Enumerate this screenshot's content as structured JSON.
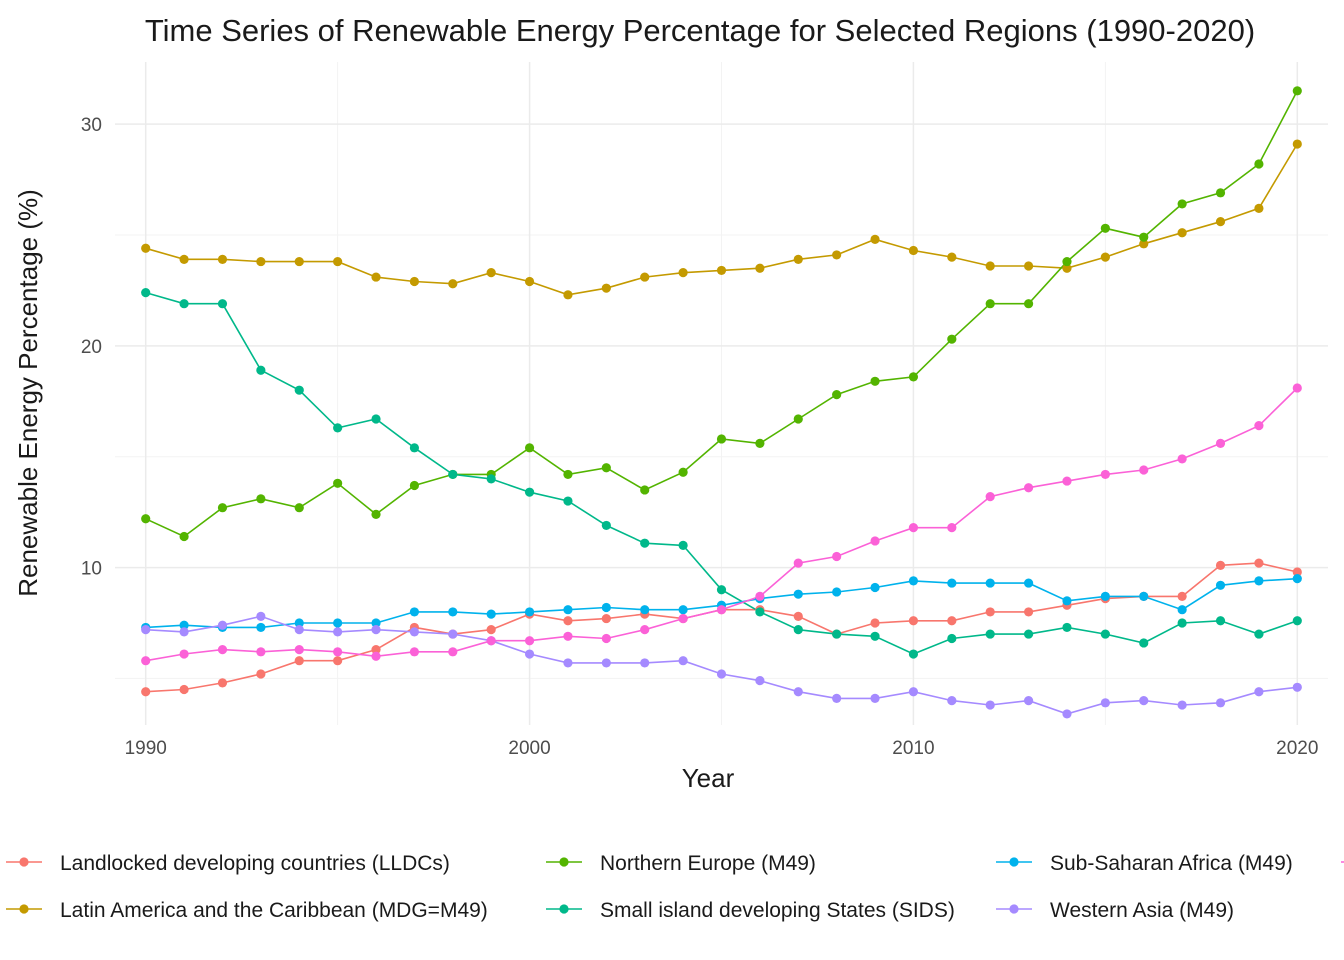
{
  "chart_data": {
    "type": "line",
    "title": "Time Series of Renewable Energy Percentage for Selected Regions (1990-2020)",
    "xlabel": "Year",
    "ylabel": "Renewable Energy Percentage (%)",
    "xlim": [
      1989.2,
      2020.8
    ],
    "ylim": [
      2.9,
      32.8
    ],
    "x_ticks": [
      1990,
      2000,
      2010,
      2020
    ],
    "y_ticks": [
      10,
      20,
      30
    ],
    "y_minor": [
      5,
      15,
      25
    ],
    "x_minor": [
      1995,
      2005,
      2015
    ],
    "grid": true,
    "legend_position": "bottom",
    "x": [
      1990,
      1991,
      1992,
      1993,
      1994,
      1995,
      1996,
      1997,
      1998,
      1999,
      2000,
      2001,
      2002,
      2003,
      2004,
      2005,
      2006,
      2007,
      2008,
      2009,
      2010,
      2011,
      2012,
      2013,
      2014,
      2015,
      2016,
      2017,
      2018,
      2019,
      2020
    ],
    "series": [
      {
        "name": "Landlocked developing countries (LLDCs)",
        "color": "#F8766D",
        "values": [
          4.4,
          4.5,
          4.8,
          5.2,
          5.8,
          5.8,
          6.3,
          7.3,
          7.0,
          7.2,
          7.9,
          7.6,
          7.7,
          7.9,
          7.7,
          8.1,
          8.1,
          7.8,
          7.0,
          7.5,
          7.6,
          7.6,
          8.0,
          8.0,
          8.3,
          8.6,
          8.7,
          8.7,
          10.1,
          10.2,
          9.8
        ]
      },
      {
        "name": "Latin America and the Caribbean (MDG=M49)",
        "color": "#C49A00",
        "values": [
          24.4,
          23.9,
          23.9,
          23.8,
          23.8,
          23.8,
          23.1,
          22.9,
          22.8,
          23.3,
          22.9,
          22.3,
          22.6,
          23.1,
          23.3,
          23.4,
          23.5,
          23.9,
          24.1,
          24.8,
          24.3,
          24.0,
          23.6,
          23.6,
          23.5,
          24.0,
          24.6,
          25.1,
          25.6,
          26.2,
          29.1
        ]
      },
      {
        "name": "Northern Europe (M49)",
        "color": "#53B400",
        "values": [
          12.2,
          11.4,
          12.7,
          13.1,
          12.7,
          13.8,
          12.4,
          13.7,
          14.2,
          14.2,
          15.4,
          14.2,
          14.5,
          13.5,
          14.3,
          15.8,
          15.6,
          16.7,
          17.8,
          18.4,
          18.6,
          20.3,
          21.9,
          21.9,
          23.8,
          25.3,
          24.9,
          26.4,
          26.9,
          28.2,
          31.5
        ]
      },
      {
        "name": "Small island developing States (SIDS)",
        "color": "#00B88A",
        "values": [
          22.4,
          21.9,
          21.9,
          18.9,
          18.0,
          16.3,
          16.7,
          15.4,
          14.2,
          14.0,
          13.4,
          13.0,
          11.9,
          11.1,
          11.0,
          9.0,
          8.0,
          7.2,
          7.0,
          6.9,
          6.1,
          6.8,
          7.0,
          7.0,
          7.3,
          7.0,
          6.6,
          7.5,
          7.6,
          7.0,
          7.6
        ]
      },
      {
        "name": "Sub-Saharan Africa (M49)",
        "color": "#00B2EC",
        "values": [
          7.3,
          7.4,
          7.3,
          7.3,
          7.5,
          7.5,
          7.5,
          8.0,
          8.0,
          7.9,
          8.0,
          8.1,
          8.2,
          8.1,
          8.1,
          8.3,
          8.6,
          8.8,
          8.9,
          9.1,
          9.4,
          9.3,
          9.3,
          9.3,
          8.5,
          8.7,
          8.7,
          8.1,
          9.2,
          9.4,
          9.5
        ]
      },
      {
        "name": "Western Asia (M49)",
        "color": "#A58AFF",
        "values": [
          7.2,
          7.1,
          7.4,
          7.8,
          7.2,
          7.1,
          7.2,
          7.1,
          7.0,
          6.7,
          6.1,
          5.7,
          5.7,
          5.7,
          5.8,
          5.2,
          4.9,
          4.4,
          4.1,
          4.1,
          4.4,
          4.0,
          3.8,
          4.0,
          3.4,
          3.9,
          4.0,
          3.8,
          3.9,
          4.4,
          4.6
        ]
      },
      {
        "name": "",
        "color": "#FB61D7",
        "values": [
          5.8,
          6.1,
          6.3,
          6.2,
          6.3,
          6.2,
          6.0,
          6.2,
          6.2,
          6.7,
          6.7,
          6.9,
          6.8,
          7.2,
          7.7,
          8.1,
          8.7,
          10.2,
          10.5,
          11.2,
          11.8,
          11.8,
          13.2,
          13.6,
          13.9,
          14.2,
          14.4,
          14.9,
          15.6,
          16.4,
          18.1
        ]
      }
    ]
  }
}
